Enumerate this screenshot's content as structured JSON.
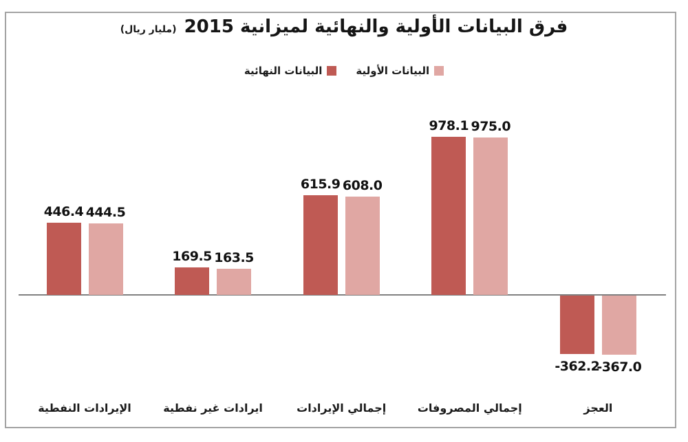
{
  "title": {
    "main": "فرق البيانات الأولية والنهائية لميزانية 2015",
    "unit": "(مليار ريال)"
  },
  "legend": [
    {
      "label": "البيانات الأولية",
      "color": "#e0a7a3"
    },
    {
      "label": "البيانات النهائية",
      "color": "#bf5a54"
    }
  ],
  "chart_data": {
    "type": "bar",
    "title": "فرق البيانات الأولية والنهائية لميزانية 2015 (مليار ريال)",
    "categories": [
      "الإيرادات النفطية",
      "ايرادات غير نفطية",
      "إجمالي الإيرادات",
      "إجمالي المصروفات",
      "العجز"
    ],
    "series": [
      {
        "name": "البيانات النهائية",
        "color": "#bf5a54",
        "values": [
          446.4,
          169.5,
          615.9,
          978.1,
          -362.2
        ]
      },
      {
        "name": "البيانات الأولية",
        "color": "#e0a7a3",
        "values": [
          444.5,
          163.5,
          608.0,
          975.0,
          -367.0
        ]
      }
    ],
    "value_labels": true,
    "ylim": [
      -450,
      1050
    ],
    "grid": false,
    "legend_position": "top",
    "axis_color": "#808080",
    "baseline": 0
  }
}
